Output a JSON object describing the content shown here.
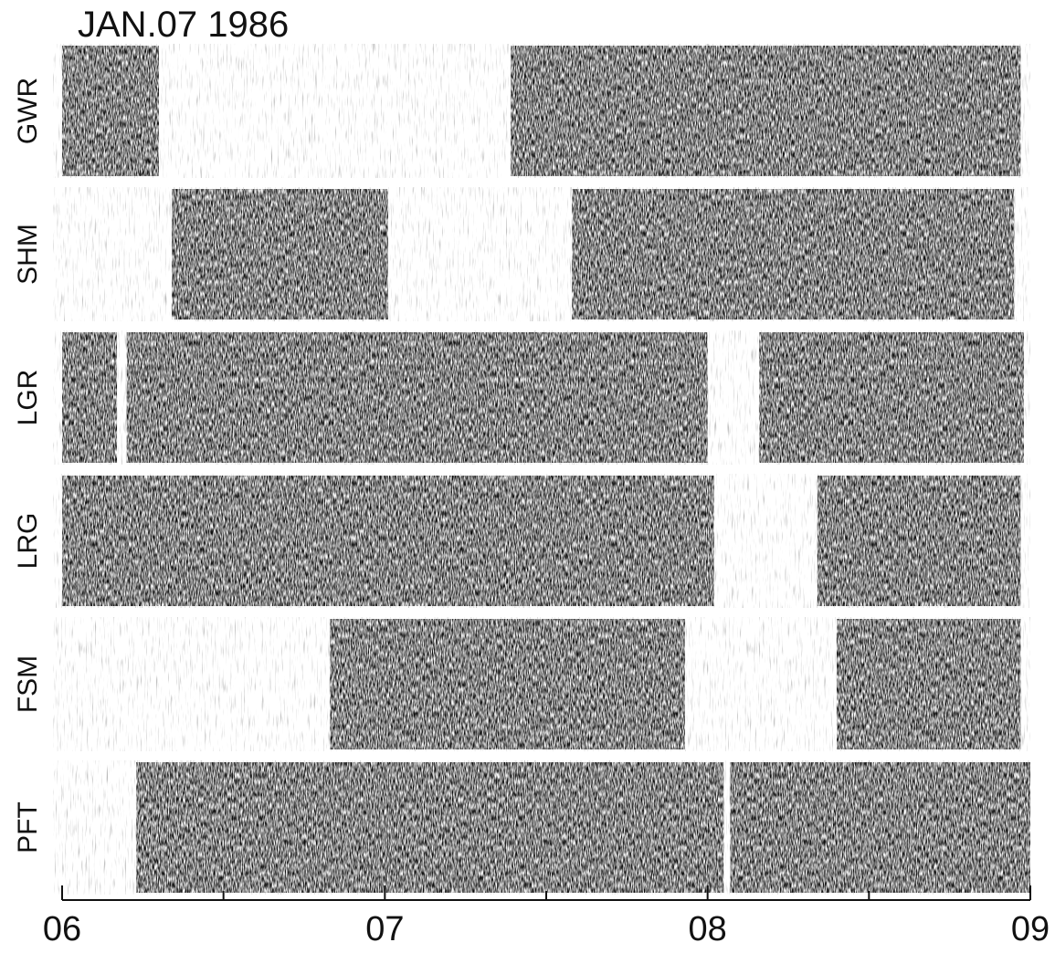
{
  "chart_data": {
    "type": "strip",
    "title": "JAN.07 1986",
    "xlim": [
      6,
      9
    ],
    "xticks": [
      {
        "value": 6,
        "label": "06"
      },
      {
        "value": 7,
        "label": "07"
      },
      {
        "value": 8,
        "label": "08"
      },
      {
        "value": 9,
        "label": "09"
      }
    ],
    "xminorticks": [
      6.5,
      7.5,
      8.5
    ],
    "color": "#111111",
    "series": [
      {
        "name": "GWR",
        "intervals": [
          [
            6.0,
            6.3
          ],
          [
            7.39,
            8.97
          ]
        ]
      },
      {
        "name": "SHM",
        "intervals": [
          [
            6.34,
            7.01
          ],
          [
            7.58,
            8.95
          ]
        ]
      },
      {
        "name": "LGR",
        "intervals": [
          [
            6.0,
            6.17
          ],
          [
            6.2,
            8.0
          ],
          [
            8.16,
            8.98
          ]
        ]
      },
      {
        "name": "LRG",
        "intervals": [
          [
            6.0,
            7.01
          ],
          [
            7.01,
            8.02
          ],
          [
            8.34,
            8.97
          ]
        ]
      },
      {
        "name": "FSM",
        "intervals": [
          [
            6.83,
            7.93
          ],
          [
            8.4,
            8.97
          ]
        ]
      },
      {
        "name": "PFT",
        "intervals": [
          [
            6.23,
            8.05
          ],
          [
            8.07,
            9.0
          ]
        ]
      }
    ]
  }
}
